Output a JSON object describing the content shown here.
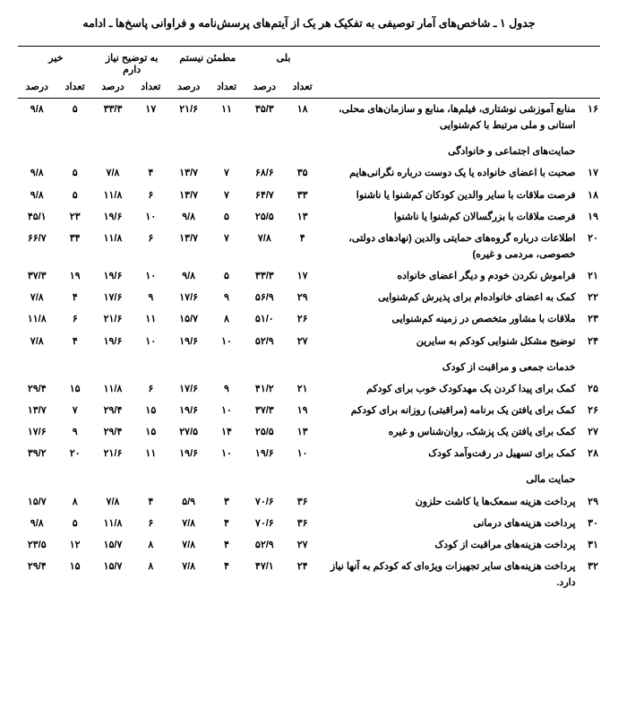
{
  "caption": "جدول ۱ ـ شاخص‌های آمار توصیفی به تفکیک هر یک از آیتم‌های پرسش‌نامه و فراوانی پاسخ‌ها ـ ادامه",
  "header": {
    "groups": [
      "بلی",
      "مطمئن نیستم",
      "به توضیح نیاز دارم",
      "خیر"
    ],
    "sub": [
      "تعداد",
      "درصد"
    ]
  },
  "sections": [
    {
      "rows": [
        {
          "n": "۱۶",
          "item": "منابع آموزشی نوشتاری، فیلم‌ها، منابع و سازمان‌های محلی، استانی و ملی مرتبط با کم‌شنوایی",
          "v": [
            "۱۸",
            "۳۵/۳",
            "۱۱",
            "۲۱/۶",
            "۱۷",
            "۳۳/۳",
            "۵",
            "۹/۸"
          ]
        }
      ]
    },
    {
      "title": "حمایت‌های اجتماعی و خانوادگی",
      "rows": [
        {
          "n": "۱۷",
          "item": "صحبت با اعضای خانواده یا یک دوست درباره نگرانی‌هایم",
          "v": [
            "۳۵",
            "۶۸/۶",
            "۷",
            "۱۳/۷",
            "۴",
            "۷/۸",
            "۵",
            "۹/۸"
          ]
        },
        {
          "n": "۱۸",
          "item": "فرصت ملاقات با سایر والدین کودکان کم‌شنوا یا ناشنوا",
          "v": [
            "۳۳",
            "۶۴/۷",
            "۷",
            "۱۳/۷",
            "۶",
            "۱۱/۸",
            "۵",
            "۹/۸"
          ]
        },
        {
          "n": "۱۹",
          "item": "فرصت ملاقات با بزرگسالان کم‌شنوا یا ناشنوا",
          "v": [
            "۱۳",
            "۲۵/۵",
            "۵",
            "۹/۸",
            "۱۰",
            "۱۹/۶",
            "۲۳",
            "۴۵/۱"
          ]
        },
        {
          "n": "۲۰",
          "item": "اطلاعات درباره گروه‌های حمایتی والدین (نهادهای دولتی، خصوصی، مردمی و غیره)",
          "v": [
            "۴",
            "۷/۸",
            "۷",
            "۱۳/۷",
            "۶",
            "۱۱/۸",
            "۳۴",
            "۶۶/۷"
          ]
        },
        {
          "n": "۲۱",
          "item": "فراموش نکردن خودم و دیگر اعضای خانواده",
          "v": [
            "۱۷",
            "۳۳/۳",
            "۵",
            "۹/۸",
            "۱۰",
            "۱۹/۶",
            "۱۹",
            "۳۷/۳"
          ]
        },
        {
          "n": "۲۲",
          "item": "کمک به اعضای خانواده‌ام برای پذیرش کم‌شنوایی",
          "v": [
            "۲۹",
            "۵۶/۹",
            "۹",
            "۱۷/۶",
            "۹",
            "۱۷/۶",
            "۴",
            "۷/۸"
          ]
        },
        {
          "n": "۲۳",
          "item": "ملاقات با مشاور متخصص در زمینه کم‌شنوایی",
          "v": [
            "۲۶",
            "۵۱/۰",
            "۸",
            "۱۵/۷",
            "۱۱",
            "۲۱/۶",
            "۶",
            "۱۱/۸"
          ]
        },
        {
          "n": "۲۴",
          "item": "توضیح مشکل شنوایی کودکم به سایرین",
          "v": [
            "۲۷",
            "۵۲/۹",
            "۱۰",
            "۱۹/۶",
            "۱۰",
            "۱۹/۶",
            "۴",
            "۷/۸"
          ]
        }
      ]
    },
    {
      "title": "خدمات جمعی و مراقبت از کودک",
      "rows": [
        {
          "n": "۲۵",
          "item": "کمک برای پیدا کردن یک مهدکودک خوب برای کودکم",
          "v": [
            "۲۱",
            "۴۱/۲",
            "۹",
            "۱۷/۶",
            "۶",
            "۱۱/۸",
            "۱۵",
            "۲۹/۴"
          ]
        },
        {
          "n": "۲۶",
          "item": "کمک برای یافتن یک برنامه (مراقبتی) روزانه برای کودکم",
          "v": [
            "۱۹",
            "۳۷/۳",
            "۱۰",
            "۱۹/۶",
            "۱۵",
            "۲۹/۴",
            "۷",
            "۱۳/۷"
          ]
        },
        {
          "n": "۲۷",
          "item": "کمک برای یافتن یک پزشک، روان‌شناس و غیره",
          "v": [
            "۱۳",
            "۲۵/۵",
            "۱۴",
            "۲۷/۵",
            "۱۵",
            "۲۹/۴",
            "۹",
            "۱۷/۶"
          ]
        },
        {
          "n": "۲۸",
          "item": "کمک برای تسهیل در رفت‌وآمد کودک",
          "v": [
            "۱۰",
            "۱۹/۶",
            "۱۰",
            "۱۹/۶",
            "۱۱",
            "۲۱/۶",
            "۲۰",
            "۳۹/۲"
          ]
        }
      ]
    },
    {
      "title": "حمایت مالی",
      "rows": [
        {
          "n": "۲۹",
          "item": "پرداخت هزینه سمعک‌ها یا کاشت حلزون",
          "v": [
            "۳۶",
            "۷۰/۶",
            "۳",
            "۵/۹",
            "۴",
            "۷/۸",
            "۸",
            "۱۵/۷"
          ]
        },
        {
          "n": "۳۰",
          "item": "پرداخت هزینه‌های درمانی",
          "v": [
            "۳۶",
            "۷۰/۶",
            "۴",
            "۷/۸",
            "۶",
            "۱۱/۸",
            "۵",
            "۹/۸"
          ]
        },
        {
          "n": "۳۱",
          "item": "پرداخت هزینه‌های مراقبت از کودک",
          "v": [
            "۲۷",
            "۵۲/۹",
            "۴",
            "۷/۸",
            "۸",
            "۱۵/۷",
            "۱۲",
            "۲۳/۵"
          ]
        },
        {
          "n": "۳۲",
          "item": "پرداخت هزینه‌های سایر تجهیزات ویژه‌ای که کودکم به آنها نیاز دارد.",
          "v": [
            "۲۴",
            "۴۷/۱",
            "۴",
            "۷/۸",
            "۸",
            "۱۵/۷",
            "۱۵",
            "۲۹/۴"
          ]
        }
      ]
    }
  ]
}
